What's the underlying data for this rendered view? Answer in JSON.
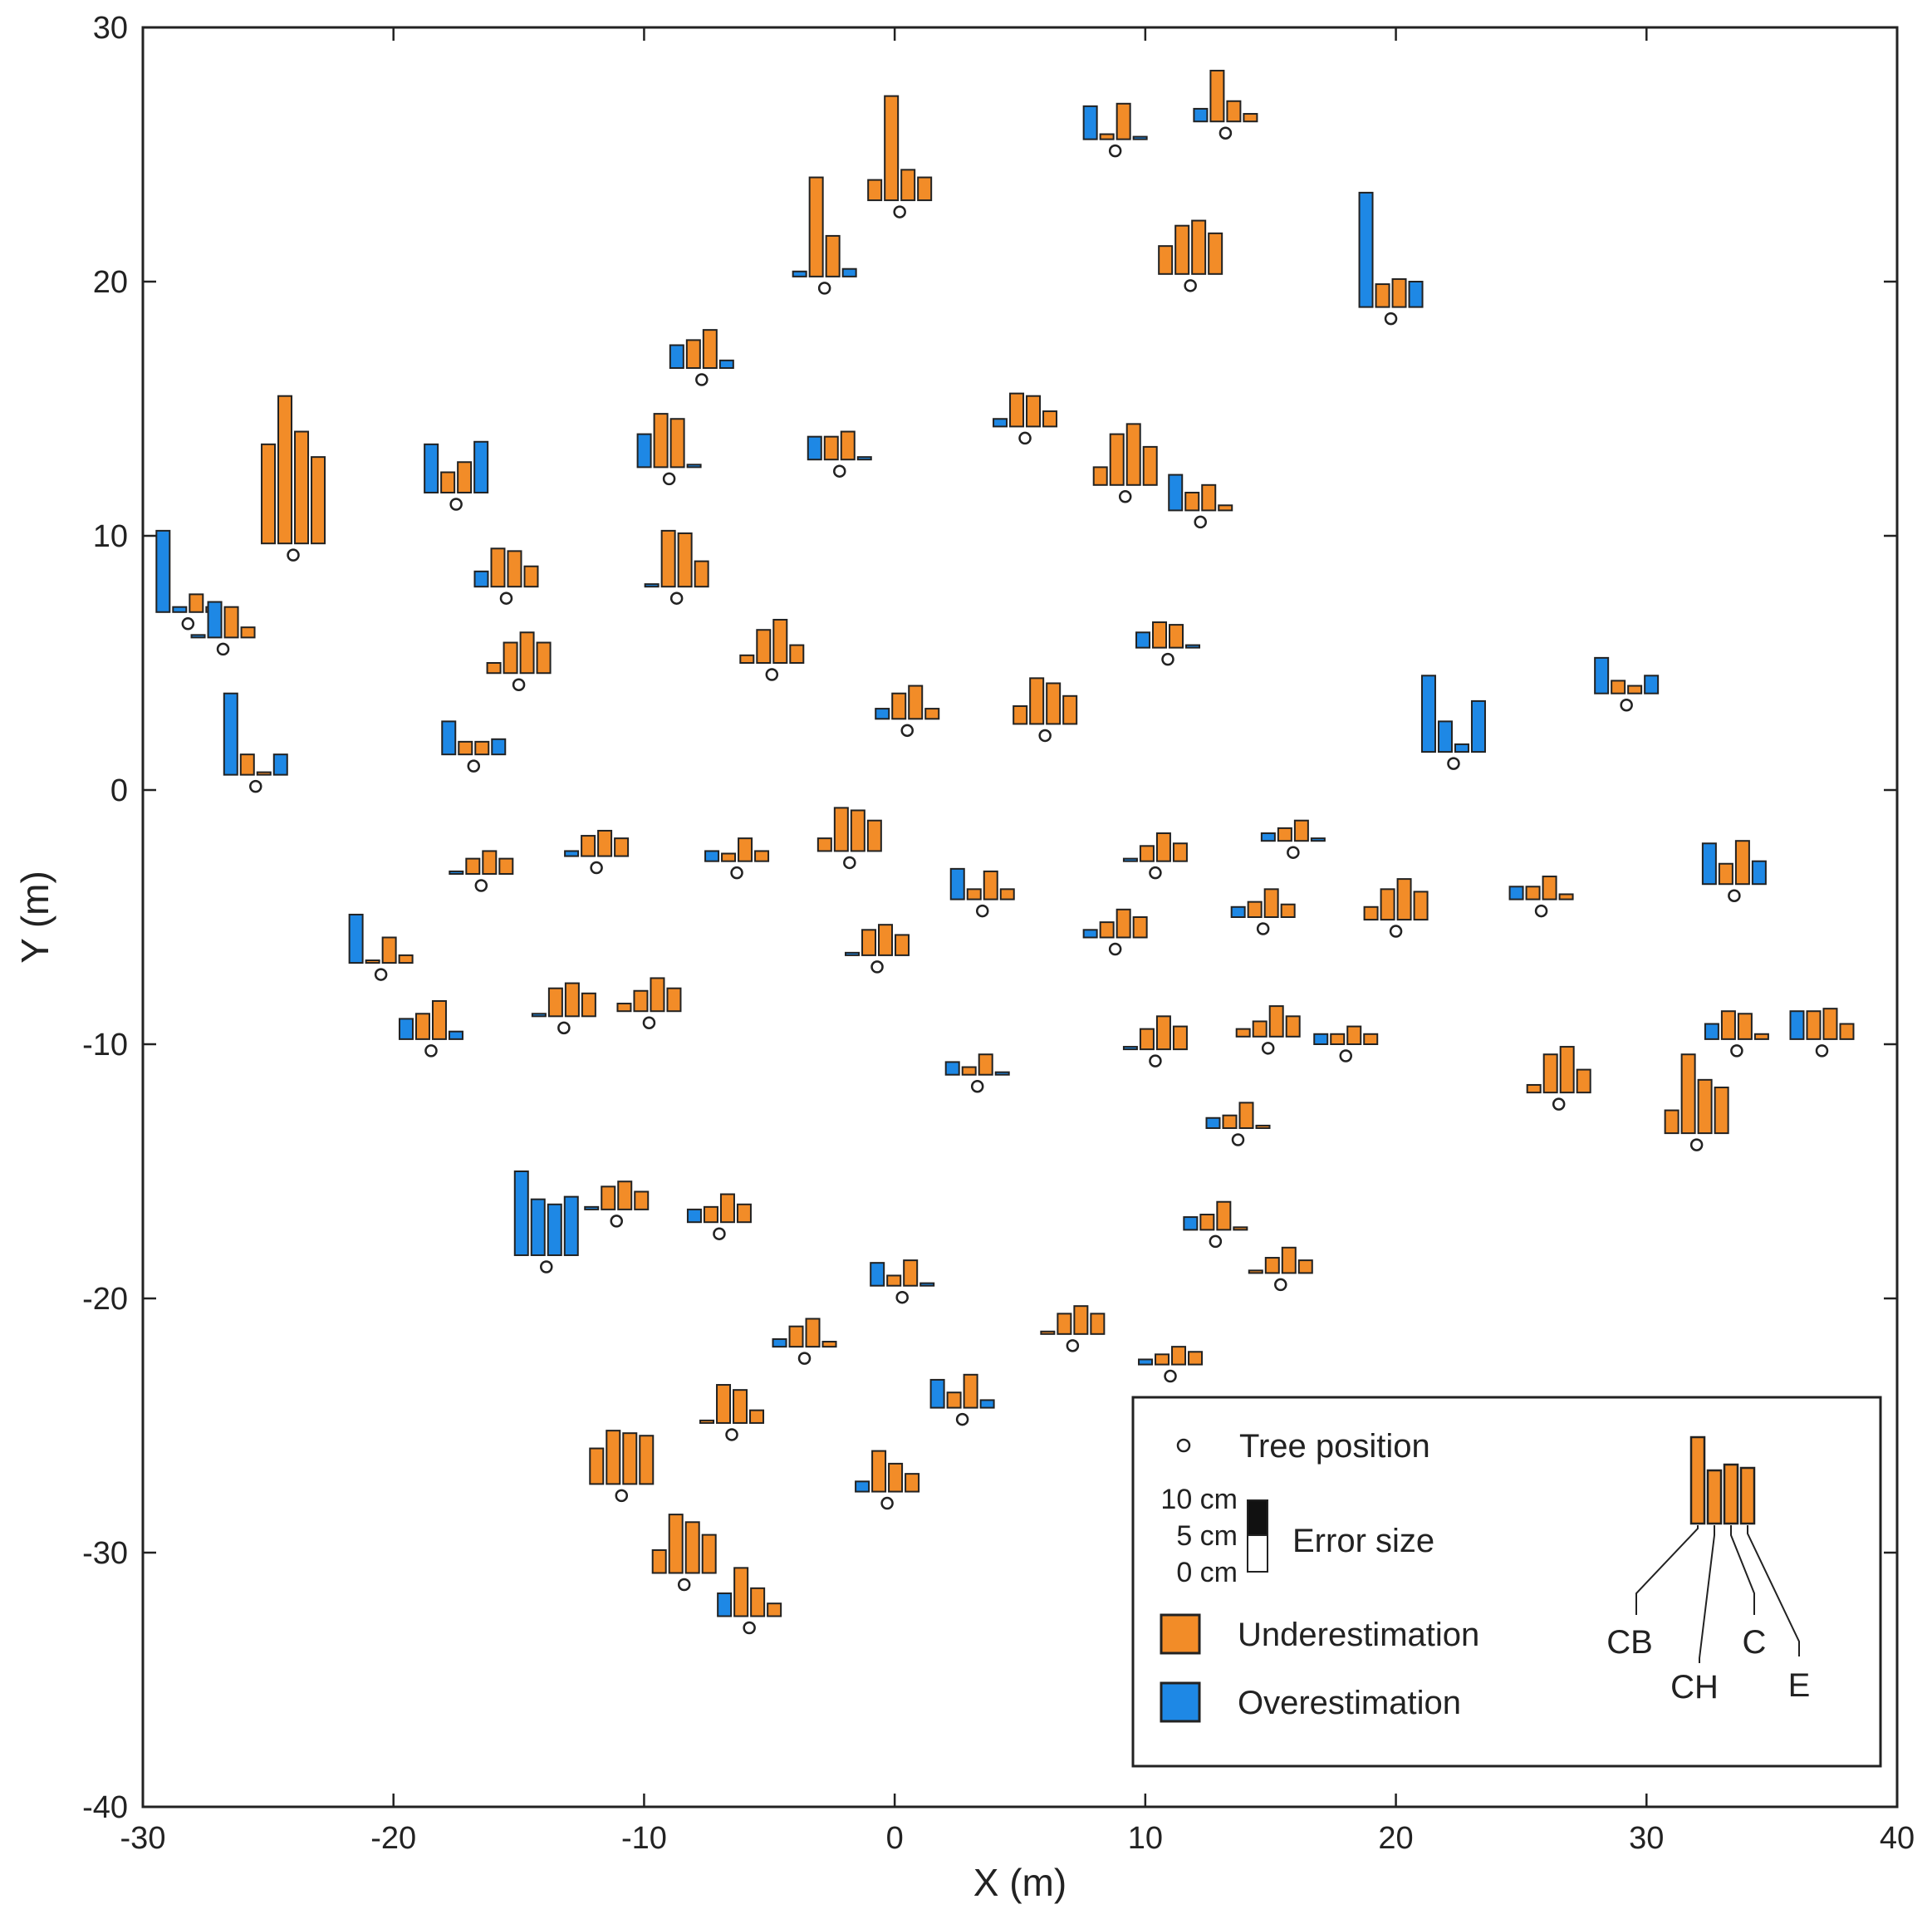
{
  "chart_data": {
    "type": "scatter",
    "subtype": "glyph-bar-map",
    "title": "",
    "xlabel": "X (m)",
    "ylabel": "Y (m)",
    "xlim": [
      -30,
      40
    ],
    "ylim": [
      -40,
      30
    ],
    "xticks": [
      -30,
      -20,
      -10,
      0,
      10,
      20,
      30,
      40
    ],
    "yticks": [
      -40,
      -30,
      -20,
      -10,
      0,
      10,
      20,
      30
    ],
    "glyph_scale_cm_per_m": 1.0,
    "metric_order": [
      "CB",
      "CH",
      "C",
      "E"
    ],
    "colors": {
      "under": "#F28C28",
      "over": "#1E88E5",
      "tree_marker": "#ffffff",
      "stroke": "#222222"
    },
    "legend": {
      "tree": "Tree position",
      "error_title": "Error size",
      "error_ticks": [
        "10 cm",
        "5 cm",
        "0 cm"
      ],
      "under": "Underestimation",
      "over": "Overestimation",
      "metrics": [
        "CB",
        "CH",
        "C",
        "E"
      ]
    },
    "trees": [
      {
        "x": -28.2,
        "y": 7.0,
        "errors": [
          3.2,
          0.2,
          0.7,
          0.2
        ],
        "signs": [
          "O",
          "O",
          "U",
          "U"
        ]
      },
      {
        "x": -26.8,
        "y": 6.0,
        "errors": [
          0.1,
          1.4,
          1.2,
          0.4
        ],
        "signs": [
          "O",
          "O",
          "U",
          "U"
        ]
      },
      {
        "x": -24.0,
        "y": 9.7,
        "errors": [
          3.9,
          5.8,
          4.4,
          3.4
        ],
        "signs": [
          "U",
          "U",
          "U",
          "U"
        ]
      },
      {
        "x": -25.5,
        "y": 0.6,
        "errors": [
          3.2,
          0.8,
          0.1,
          0.8
        ],
        "signs": [
          "O",
          "U",
          "U",
          "O"
        ]
      },
      {
        "x": -17.5,
        "y": 11.7,
        "errors": [
          1.9,
          0.8,
          1.2,
          2.0
        ],
        "signs": [
          "O",
          "U",
          "U",
          "O"
        ]
      },
      {
        "x": -15.5,
        "y": 8.0,
        "errors": [
          0.6,
          1.5,
          1.4,
          0.8
        ],
        "signs": [
          "O",
          "U",
          "U",
          "U"
        ]
      },
      {
        "x": -15.0,
        "y": 4.6,
        "errors": [
          0.4,
          1.2,
          1.6,
          1.2
        ],
        "signs": [
          "U",
          "U",
          "U",
          "U"
        ]
      },
      {
        "x": -16.8,
        "y": 1.4,
        "errors": [
          1.3,
          0.5,
          0.5,
          0.6
        ],
        "signs": [
          "O",
          "U",
          "U",
          "O"
        ]
      },
      {
        "x": -7.7,
        "y": 16.6,
        "errors": [
          0.9,
          1.1,
          1.5,
          0.3
        ],
        "signs": [
          "O",
          "U",
          "U",
          "O"
        ]
      },
      {
        "x": -9.0,
        "y": 12.7,
        "errors": [
          1.3,
          2.1,
          1.9,
          0.1
        ],
        "signs": [
          "O",
          "U",
          "U",
          "O"
        ]
      },
      {
        "x": -8.7,
        "y": 8.0,
        "errors": [
          0.1,
          2.2,
          2.1,
          1.0
        ],
        "signs": [
          "O",
          "U",
          "U",
          "U"
        ]
      },
      {
        "x": -2.8,
        "y": 20.2,
        "errors": [
          0.2,
          3.9,
          1.6,
          0.3
        ],
        "signs": [
          "O",
          "U",
          "U",
          "O"
        ]
      },
      {
        "x": 0.2,
        "y": 23.2,
        "errors": [
          0.8,
          4.1,
          1.2,
          0.9
        ],
        "signs": [
          "U",
          "U",
          "U",
          "U"
        ]
      },
      {
        "x": -2.2,
        "y": 13.0,
        "errors": [
          0.9,
          0.9,
          1.1,
          0.1
        ],
        "signs": [
          "O",
          "U",
          "U",
          "O"
        ]
      },
      {
        "x": -4.9,
        "y": 5.0,
        "errors": [
          0.3,
          1.3,
          1.7,
          0.7
        ],
        "signs": [
          "U",
          "U",
          "U",
          "U"
        ]
      },
      {
        "x": 0.5,
        "y": 2.8,
        "errors": [
          0.4,
          1.0,
          1.3,
          0.4
        ],
        "signs": [
          "O",
          "U",
          "U",
          "U"
        ]
      },
      {
        "x": 8.8,
        "y": 25.6,
        "errors": [
          1.3,
          0.2,
          1.4,
          0.1
        ],
        "signs": [
          "O",
          "U",
          "U",
          "O"
        ]
      },
      {
        "x": 13.2,
        "y": 26.3,
        "errors": [
          0.5,
          2.0,
          0.8,
          0.3
        ],
        "signs": [
          "O",
          "U",
          "U",
          "U"
        ]
      },
      {
        "x": 11.8,
        "y": 20.3,
        "errors": [
          1.1,
          1.9,
          2.1,
          1.6
        ],
        "signs": [
          "U",
          "U",
          "U",
          "U"
        ]
      },
      {
        "x": 19.8,
        "y": 19.0,
        "errors": [
          4.5,
          0.9,
          1.1,
          1.0
        ],
        "signs": [
          "O",
          "U",
          "U",
          "O"
        ]
      },
      {
        "x": 5.2,
        "y": 14.3,
        "errors": [
          0.3,
          1.3,
          1.2,
          0.6
        ],
        "signs": [
          "O",
          "U",
          "U",
          "U"
        ]
      },
      {
        "x": 9.2,
        "y": 12.0,
        "errors": [
          0.7,
          2.0,
          2.4,
          1.5
        ],
        "signs": [
          "U",
          "U",
          "U",
          "U"
        ]
      },
      {
        "x": 12.2,
        "y": 11.0,
        "errors": [
          1.4,
          0.7,
          1.0,
          0.2
        ],
        "signs": [
          "O",
          "U",
          "U",
          "U"
        ]
      },
      {
        "x": 10.9,
        "y": 5.6,
        "errors": [
          0.6,
          1.0,
          0.9,
          0.1
        ],
        "signs": [
          "O",
          "U",
          "U",
          "O"
        ]
      },
      {
        "x": 6.0,
        "y": 2.6,
        "errors": [
          0.7,
          1.8,
          1.6,
          1.1
        ],
        "signs": [
          "U",
          "U",
          "U",
          "U"
        ]
      },
      {
        "x": 22.3,
        "y": 1.5,
        "errors": [
          3.0,
          1.2,
          0.3,
          2.0
        ],
        "signs": [
          "O",
          "O",
          "O",
          "O"
        ]
      },
      {
        "x": 29.2,
        "y": 3.8,
        "errors": [
          1.4,
          0.5,
          0.3,
          0.7
        ],
        "signs": [
          "O",
          "U",
          "U",
          "O"
        ]
      },
      {
        "x": -16.5,
        "y": -3.3,
        "errors": [
          0.1,
          0.6,
          0.9,
          0.6
        ],
        "signs": [
          "O",
          "U",
          "U",
          "U"
        ]
      },
      {
        "x": -11.9,
        "y": -2.6,
        "errors": [
          0.2,
          0.8,
          1.0,
          0.7
        ],
        "signs": [
          "O",
          "U",
          "U",
          "U"
        ]
      },
      {
        "x": -6.3,
        "y": -2.8,
        "errors": [
          0.4,
          0.3,
          0.9,
          0.4
        ],
        "signs": [
          "O",
          "U",
          "U",
          "U"
        ]
      },
      {
        "x": -1.8,
        "y": -2.4,
        "errors": [
          0.5,
          1.7,
          1.6,
          1.2
        ],
        "signs": [
          "U",
          "U",
          "U",
          "U"
        ]
      },
      {
        "x": 3.5,
        "y": -4.3,
        "errors": [
          1.2,
          0.4,
          1.1,
          0.4
        ],
        "signs": [
          "O",
          "U",
          "U",
          "U"
        ]
      },
      {
        "x": -0.7,
        "y": -6.5,
        "errors": [
          0.1,
          1.0,
          1.2,
          0.8
        ],
        "signs": [
          "O",
          "U",
          "U",
          "U"
        ]
      },
      {
        "x": 10.4,
        "y": -2.8,
        "errors": [
          0.1,
          0.6,
          1.1,
          0.7
        ],
        "signs": [
          "O",
          "U",
          "U",
          "U"
        ]
      },
      {
        "x": 15.9,
        "y": -2.0,
        "errors": [
          0.3,
          0.5,
          0.8,
          0.1
        ],
        "signs": [
          "O",
          "U",
          "U",
          "O"
        ]
      },
      {
        "x": 14.7,
        "y": -5.0,
        "errors": [
          0.4,
          0.6,
          1.1,
          0.5
        ],
        "signs": [
          "O",
          "U",
          "U",
          "U"
        ]
      },
      {
        "x": 8.8,
        "y": -5.8,
        "errors": [
          0.3,
          0.6,
          1.1,
          0.8
        ],
        "signs": [
          "O",
          "U",
          "U",
          "U"
        ]
      },
      {
        "x": 20.0,
        "y": -5.1,
        "errors": [
          0.5,
          1.2,
          1.6,
          1.1
        ],
        "signs": [
          "U",
          "U",
          "U",
          "U"
        ]
      },
      {
        "x": 25.8,
        "y": -4.3,
        "errors": [
          0.5,
          0.5,
          0.9,
          0.2
        ],
        "signs": [
          "O",
          "U",
          "U",
          "U"
        ]
      },
      {
        "x": 33.5,
        "y": -3.7,
        "errors": [
          1.6,
          0.8,
          1.7,
          0.9
        ],
        "signs": [
          "O",
          "U",
          "U",
          "O"
        ]
      },
      {
        "x": -20.5,
        "y": -6.8,
        "errors": [
          1.9,
          0.1,
          1.0,
          0.3
        ],
        "signs": [
          "O",
          "U",
          "U",
          "U"
        ]
      },
      {
        "x": -18.5,
        "y": -9.8,
        "errors": [
          0.8,
          1.0,
          1.5,
          0.3
        ],
        "signs": [
          "O",
          "U",
          "U",
          "O"
        ]
      },
      {
        "x": -13.2,
        "y": -8.9,
        "errors": [
          0.1,
          1.1,
          1.3,
          0.9
        ],
        "signs": [
          "O",
          "U",
          "U",
          "U"
        ]
      },
      {
        "x": -9.8,
        "y": -8.7,
        "errors": [
          0.3,
          0.8,
          1.3,
          0.9
        ],
        "signs": [
          "U",
          "U",
          "U",
          "U"
        ]
      },
      {
        "x": 3.3,
        "y": -11.2,
        "errors": [
          0.5,
          0.3,
          0.8,
          0.1
        ],
        "signs": [
          "O",
          "U",
          "U",
          "O"
        ]
      },
      {
        "x": 10.4,
        "y": -10.2,
        "errors": [
          0.1,
          0.8,
          1.3,
          0.9
        ],
        "signs": [
          "O",
          "U",
          "U",
          "U"
        ]
      },
      {
        "x": 14.9,
        "y": -9.7,
        "errors": [
          0.3,
          0.6,
          1.2,
          0.8
        ],
        "signs": [
          "U",
          "U",
          "U",
          "U"
        ]
      },
      {
        "x": 18.0,
        "y": -10.0,
        "errors": [
          0.4,
          0.4,
          0.7,
          0.4
        ],
        "signs": [
          "O",
          "U",
          "U",
          "U"
        ]
      },
      {
        "x": 26.5,
        "y": -11.9,
        "errors": [
          0.3,
          1.5,
          1.8,
          0.9
        ],
        "signs": [
          "U",
          "U",
          "U",
          "U"
        ]
      },
      {
        "x": 32.0,
        "y": -13.5,
        "errors": [
          0.9,
          3.1,
          2.1,
          1.8
        ],
        "signs": [
          "U",
          "U",
          "U",
          "U"
        ]
      },
      {
        "x": 33.6,
        "y": -9.8,
        "errors": [
          0.6,
          1.1,
          1.0,
          0.2
        ],
        "signs": [
          "O",
          "U",
          "U",
          "U"
        ]
      },
      {
        "x": 37.0,
        "y": -9.8,
        "errors": [
          1.1,
          1.1,
          1.2,
          0.6
        ],
        "signs": [
          "O",
          "U",
          "U",
          "U"
        ]
      },
      {
        "x": 13.7,
        "y": -13.3,
        "errors": [
          0.4,
          0.5,
          1.0,
          0.1
        ],
        "signs": [
          "O",
          "U",
          "U",
          "U"
        ]
      },
      {
        "x": -13.9,
        "y": -18.3,
        "errors": [
          3.3,
          2.2,
          2.0,
          2.3
        ],
        "signs": [
          "O",
          "O",
          "O",
          "O"
        ]
      },
      {
        "x": -11.1,
        "y": -16.5,
        "errors": [
          0.1,
          0.9,
          1.1,
          0.7
        ],
        "signs": [
          "O",
          "U",
          "U",
          "U"
        ]
      },
      {
        "x": -7.0,
        "y": -17.0,
        "errors": [
          0.5,
          0.6,
          1.1,
          0.7
        ],
        "signs": [
          "O",
          "U",
          "U",
          "U"
        ]
      },
      {
        "x": 0.3,
        "y": -19.5,
        "errors": [
          0.9,
          0.4,
          1.0,
          0.1
        ],
        "signs": [
          "O",
          "U",
          "U",
          "O"
        ]
      },
      {
        "x": -3.6,
        "y": -21.9,
        "errors": [
          0.3,
          0.8,
          1.1,
          0.2
        ],
        "signs": [
          "O",
          "U",
          "U",
          "U"
        ]
      },
      {
        "x": 12.8,
        "y": -17.3,
        "errors": [
          0.5,
          0.6,
          1.1,
          0.1
        ],
        "signs": [
          "O",
          "U",
          "U",
          "U"
        ]
      },
      {
        "x": 7.1,
        "y": -21.4,
        "errors": [
          0.1,
          0.8,
          1.1,
          0.8
        ],
        "signs": [
          "U",
          "U",
          "U",
          "U"
        ]
      },
      {
        "x": 15.4,
        "y": -19.0,
        "errors": [
          0.1,
          0.6,
          1.0,
          0.5
        ],
        "signs": [
          "U",
          "U",
          "U",
          "U"
        ]
      },
      {
        "x": 11.0,
        "y": -22.6,
        "errors": [
          0.2,
          0.4,
          0.7,
          0.5
        ],
        "signs": [
          "O",
          "U",
          "U",
          "U"
        ]
      },
      {
        "x": 2.7,
        "y": -24.3,
        "errors": [
          1.1,
          0.6,
          1.3,
          0.3
        ],
        "signs": [
          "O",
          "U",
          "U",
          "O"
        ]
      },
      {
        "x": -6.5,
        "y": -24.9,
        "errors": [
          0.1,
          1.5,
          1.3,
          0.5
        ],
        "signs": [
          "U",
          "U",
          "U",
          "U"
        ]
      },
      {
        "x": -10.9,
        "y": -27.3,
        "errors": [
          1.4,
          2.1,
          2.0,
          1.9
        ],
        "signs": [
          "U",
          "U",
          "U",
          "U"
        ]
      },
      {
        "x": -0.3,
        "y": -27.6,
        "errors": [
          0.4,
          1.6,
          1.1,
          0.7
        ],
        "signs": [
          "O",
          "U",
          "U",
          "U"
        ]
      },
      {
        "x": -8.4,
        "y": -30.8,
        "errors": [
          0.9,
          2.3,
          2.0,
          1.5
        ],
        "signs": [
          "U",
          "U",
          "U",
          "U"
        ]
      },
      {
        "x": -5.8,
        "y": -32.5,
        "errors": [
          0.9,
          1.9,
          1.1,
          0.5
        ],
        "signs": [
          "O",
          "U",
          "U",
          "U"
        ]
      }
    ]
  }
}
